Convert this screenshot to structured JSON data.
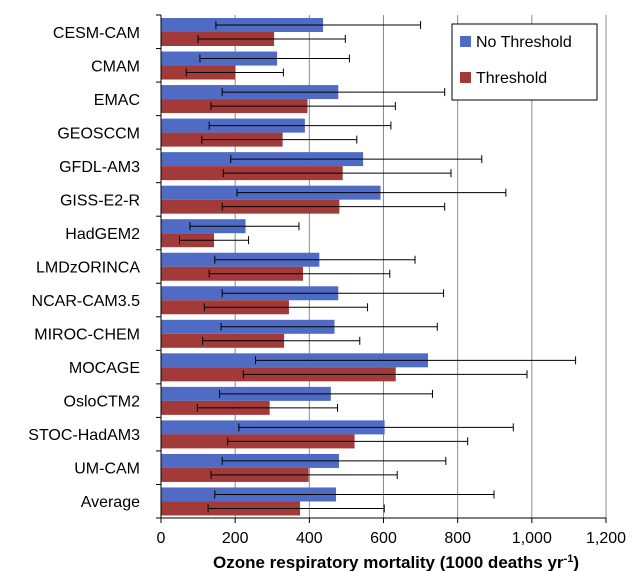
{
  "chart_data": {
    "type": "bar",
    "orientation": "horizontal",
    "title": "",
    "xlabel": "Ozone respiratory mortality (1000 deaths yr",
    "xlabel_sup": "-1",
    "xlabel_close": ")",
    "ylabel": "",
    "xlim": [
      0,
      1200
    ],
    "x_ticks": [
      0,
      200,
      400,
      600,
      800,
      1000,
      1200
    ],
    "x_tick_labels": [
      "0",
      "200",
      "400",
      "600",
      "800",
      "1,000",
      "1,200"
    ],
    "grid": "vertical",
    "legend_position": "top-right",
    "categories": [
      "CESM-CAM",
      "CMAM",
      "EMAC",
      "GEOSCCM",
      "GFDL-AM3",
      "GISS-E2-R",
      "HadGEM2",
      "LMDzORINCA",
      "NCAR-CAM3.5",
      "MIROC-CHEM",
      "MOCAGE",
      "OsloCTM2",
      "STOC-HadAM3",
      "UM-CAM",
      "Average"
    ],
    "series": [
      {
        "name": "No Threshold",
        "color": "#4F6BC4",
        "values": [
          437,
          313,
          478,
          388,
          545,
          592,
          228,
          427,
          478,
          468,
          720,
          458,
          603,
          480,
          472
        ],
        "error_low": [
          148,
          105,
          165,
          130,
          188,
          205,
          78,
          145,
          165,
          162,
          255,
          158,
          210,
          165,
          145
        ],
        "error_high": [
          700,
          508,
          765,
          620,
          865,
          930,
          372,
          685,
          762,
          745,
          1118,
          732,
          950,
          768,
          898
        ]
      },
      {
        "name": "Threshold",
        "color": "#A23A3A",
        "values": [
          305,
          200,
          395,
          328,
          490,
          481,
          143,
          383,
          345,
          332,
          633,
          293,
          522,
          398,
          375
        ],
        "error_low": [
          100,
          68,
          135,
          110,
          168,
          165,
          50,
          130,
          117,
          112,
          222,
          98,
          180,
          135,
          127
        ],
        "error_high": [
          497,
          330,
          632,
          528,
          782,
          765,
          236,
          617,
          557,
          536,
          987,
          476,
          827,
          637,
          602
        ]
      }
    ]
  }
}
